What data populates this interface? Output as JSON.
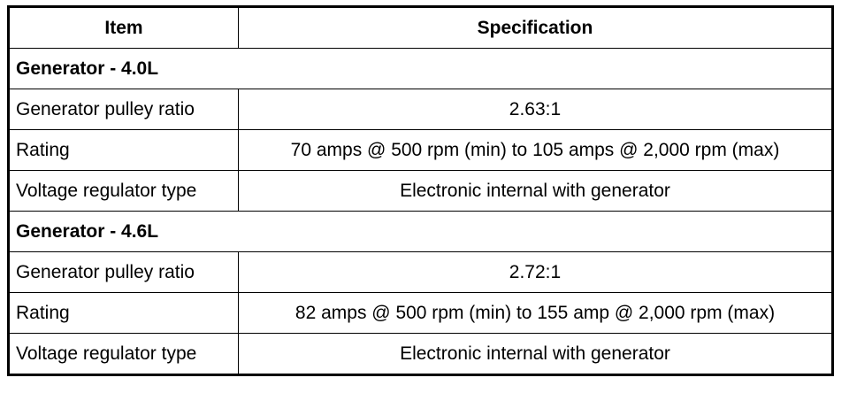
{
  "table": {
    "header": [
      "Item",
      "Specification"
    ],
    "sections": [
      {
        "title": "Generator - 4.0L",
        "rows": [
          [
            "Generator pulley ratio",
            "2.63:1"
          ],
          [
            "Rating",
            "70 amps @ 500 rpm (min) to 105 amps @ 2,000 rpm (max)"
          ],
          [
            "Voltage regulator type",
            "Electronic internal with generator"
          ]
        ]
      },
      {
        "title": "Generator - 4.6L",
        "rows": [
          [
            "Generator pulley ratio",
            "2.72:1"
          ],
          [
            "Rating",
            "82 amps @ 500 rpm (min) to 155 amp @ 2,000 rpm (max)"
          ],
          [
            "Voltage regulator type",
            "Electronic internal with generator"
          ]
        ]
      }
    ]
  }
}
